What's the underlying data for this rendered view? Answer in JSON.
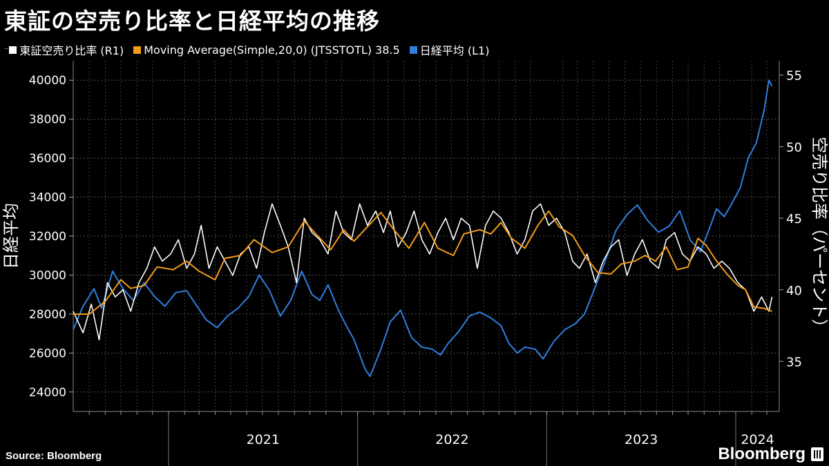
{
  "title": "東証の空売り比率と日経平均の推移",
  "legend": [
    {
      "label": "東証空売り比率 (R1)",
      "color": "#ffffff",
      "pin": "⁻"
    },
    {
      "label": "Moving Average(Simple,20,0) (JTSSTOTL) 38.5",
      "color": "#f39c1b"
    },
    {
      "label": "日経平均 (L1)",
      "color": "#2f7fe0"
    }
  ],
  "footer": {
    "source": "Source:  Bloomberg",
    "brand": "Bloomberg"
  },
  "icons": {
    "brand_logo": "bloomberg-terminal-icon"
  },
  "chart_data": {
    "type": "line",
    "x_ticks": [
      "2021",
      "2022",
      "2023",
      "2024"
    ],
    "left_axis": {
      "label": "日経平均",
      "ticks": [
        24000,
        26000,
        28000,
        30000,
        32000,
        34000,
        36000,
        38000,
        40000
      ],
      "range": [
        23000,
        41000
      ]
    },
    "right_axis": {
      "label": "空売り比率（パーセント）",
      "ticks": [
        35,
        40,
        45,
        50,
        55
      ],
      "range": [
        31.5,
        56
      ]
    },
    "series": [
      {
        "name": "東証空売り比率 (R1)",
        "axis": "right",
        "color": "#ffffff",
        "points": [
          [
            "2020-07-01",
            38.5
          ],
          [
            "2020-07-20",
            37.0
          ],
          [
            "2020-08-05",
            39.0
          ],
          [
            "2020-08-20",
            36.5
          ],
          [
            "2020-09-05",
            40.5
          ],
          [
            "2020-09-20",
            39.5
          ],
          [
            "2020-10-05",
            40.0
          ],
          [
            "2020-10-20",
            38.5
          ],
          [
            "2020-11-05",
            40.5
          ],
          [
            "2020-11-20",
            41.5
          ],
          [
            "2020-12-05",
            43.0
          ],
          [
            "2020-12-20",
            42.0
          ],
          [
            "2021-01-05",
            42.5
          ],
          [
            "2021-01-20",
            43.5
          ],
          [
            "2021-02-05",
            41.5
          ],
          [
            "2021-02-20",
            42.5
          ],
          [
            "2021-03-05",
            44.5
          ],
          [
            "2021-03-20",
            41.5
          ],
          [
            "2021-04-05",
            43.0
          ],
          [
            "2021-04-20",
            42.0
          ],
          [
            "2021-05-05",
            41.0
          ],
          [
            "2021-05-20",
            42.5
          ],
          [
            "2021-06-05",
            43.0
          ],
          [
            "2021-06-20",
            41.5
          ],
          [
            "2021-07-05",
            44.0
          ],
          [
            "2021-07-20",
            46.0
          ],
          [
            "2021-08-05",
            44.5
          ],
          [
            "2021-08-20",
            43.0
          ],
          [
            "2021-09-05",
            40.5
          ],
          [
            "2021-09-20",
            45.0
          ],
          [
            "2021-10-05",
            44.0
          ],
          [
            "2021-10-20",
            43.5
          ],
          [
            "2021-11-05",
            42.5
          ],
          [
            "2021-11-20",
            45.5
          ],
          [
            "2021-12-05",
            44.0
          ],
          [
            "2021-12-20",
            43.5
          ],
          [
            "2022-01-05",
            46.0
          ],
          [
            "2022-01-20",
            44.5
          ],
          [
            "2022-02-05",
            45.5
          ],
          [
            "2022-02-20",
            44.0
          ],
          [
            "2022-03-05",
            45.5
          ],
          [
            "2022-03-20",
            43.0
          ],
          [
            "2022-04-05",
            44.0
          ],
          [
            "2022-04-20",
            45.5
          ],
          [
            "2022-05-05",
            43.5
          ],
          [
            "2022-05-20",
            42.5
          ],
          [
            "2022-06-05",
            44.0
          ],
          [
            "2022-06-20",
            45.0
          ],
          [
            "2022-07-05",
            43.5
          ],
          [
            "2022-07-20",
            45.0
          ],
          [
            "2022-08-05",
            44.5
          ],
          [
            "2022-08-20",
            41.5
          ],
          [
            "2022-09-05",
            44.5
          ],
          [
            "2022-09-20",
            45.5
          ],
          [
            "2022-10-05",
            45.0
          ],
          [
            "2022-10-20",
            44.0
          ],
          [
            "2022-11-05",
            42.5
          ],
          [
            "2022-11-20",
            43.5
          ],
          [
            "2022-12-05",
            45.5
          ],
          [
            "2022-12-20",
            46.0
          ],
          [
            "2023-01-05",
            44.5
          ],
          [
            "2023-01-20",
            45.0
          ],
          [
            "2023-02-05",
            44.0
          ],
          [
            "2023-02-20",
            42.0
          ],
          [
            "2023-03-05",
            41.5
          ],
          [
            "2023-03-20",
            42.5
          ],
          [
            "2023-04-05",
            40.5
          ],
          [
            "2023-04-20",
            42.0
          ],
          [
            "2023-05-05",
            43.0
          ],
          [
            "2023-05-20",
            43.5
          ],
          [
            "2023-06-05",
            41.0
          ],
          [
            "2023-06-20",
            42.5
          ],
          [
            "2023-07-05",
            43.5
          ],
          [
            "2023-07-20",
            42.0
          ],
          [
            "2023-08-05",
            41.5
          ],
          [
            "2023-08-20",
            43.5
          ],
          [
            "2023-09-05",
            44.0
          ],
          [
            "2023-09-20",
            42.5
          ],
          [
            "2023-10-05",
            42.0
          ],
          [
            "2023-10-20",
            43.0
          ],
          [
            "2023-11-05",
            42.5
          ],
          [
            "2023-11-20",
            41.5
          ],
          [
            "2023-12-05",
            42.0
          ],
          [
            "2023-12-20",
            41.5
          ],
          [
            "2024-01-05",
            40.5
          ],
          [
            "2024-01-20",
            40.0
          ],
          [
            "2024-02-05",
            38.5
          ],
          [
            "2024-02-20",
            39.5
          ],
          [
            "2024-03-05",
            38.5
          ],
          [
            "2024-03-11",
            39.5
          ]
        ]
      },
      {
        "name": "Moving Average(Simple,20,0) (JTSSTOTL) 38.5",
        "axis": "right",
        "color": "#f39c1b",
        "points": [
          [
            "2020-07-01",
            38.3
          ],
          [
            "2020-08-01",
            38.3
          ],
          [
            "2020-09-01",
            39.2
          ],
          [
            "2020-10-01",
            40.7
          ],
          [
            "2020-10-20",
            40.1
          ],
          [
            "2020-11-15",
            40.3
          ],
          [
            "2020-12-10",
            41.6
          ],
          [
            "2021-01-10",
            41.4
          ],
          [
            "2021-02-05",
            42.0
          ],
          [
            "2021-03-01",
            41.3
          ],
          [
            "2021-04-01",
            40.7
          ],
          [
            "2021-04-20",
            42.2
          ],
          [
            "2021-05-20",
            42.4
          ],
          [
            "2021-06-15",
            43.5
          ],
          [
            "2021-07-20",
            42.6
          ],
          [
            "2021-08-20",
            43.0
          ],
          [
            "2021-09-20",
            44.8
          ],
          [
            "2021-10-15",
            43.8
          ],
          [
            "2021-11-10",
            42.8
          ],
          [
            "2021-12-05",
            44.2
          ],
          [
            "2021-12-25",
            43.4
          ],
          [
            "2022-01-25",
            44.6
          ],
          [
            "2022-02-15",
            45.4
          ],
          [
            "2022-03-10",
            44.3
          ],
          [
            "2022-04-10",
            42.9
          ],
          [
            "2022-05-10",
            44.7
          ],
          [
            "2022-06-05",
            42.9
          ],
          [
            "2022-07-05",
            42.4
          ],
          [
            "2022-07-25",
            43.9
          ],
          [
            "2022-08-25",
            44.2
          ],
          [
            "2022-09-15",
            43.9
          ],
          [
            "2022-10-05",
            44.7
          ],
          [
            "2022-10-25",
            43.6
          ],
          [
            "2022-11-20",
            42.9
          ],
          [
            "2022-12-15",
            44.5
          ],
          [
            "2023-01-05",
            45.5
          ],
          [
            "2023-01-25",
            44.4
          ],
          [
            "2023-02-20",
            43.8
          ],
          [
            "2023-03-15",
            42.4
          ],
          [
            "2023-04-10",
            41.2
          ],
          [
            "2023-05-05",
            41.1
          ],
          [
            "2023-05-25",
            41.8
          ],
          [
            "2023-06-20",
            42.0
          ],
          [
            "2023-07-10",
            42.4
          ],
          [
            "2023-07-30",
            42.0
          ],
          [
            "2023-08-20",
            43.0
          ],
          [
            "2023-09-10",
            41.4
          ],
          [
            "2023-10-01",
            41.6
          ],
          [
            "2023-10-20",
            43.6
          ],
          [
            "2023-11-05",
            43.1
          ],
          [
            "2023-11-25",
            42.0
          ],
          [
            "2023-12-15",
            41.1
          ],
          [
            "2024-01-05",
            40.3
          ],
          [
            "2024-01-20",
            40.0
          ],
          [
            "2024-02-05",
            38.8
          ],
          [
            "2024-02-25",
            38.7
          ],
          [
            "2024-03-11",
            38.5
          ]
        ]
      },
      {
        "name": "日経平均 (L1)",
        "axis": "left",
        "color": "#2f7fe0",
        "points": [
          [
            "2020-07-01",
            27200
          ],
          [
            "2020-07-20",
            28400
          ],
          [
            "2020-08-10",
            29300
          ],
          [
            "2020-08-25",
            28300
          ],
          [
            "2020-09-15",
            30200
          ],
          [
            "2020-10-05",
            29300
          ],
          [
            "2020-10-25",
            28700
          ],
          [
            "2020-11-15",
            29600
          ],
          [
            "2020-12-05",
            28900
          ],
          [
            "2020-12-25",
            28400
          ],
          [
            "2021-01-15",
            29100
          ],
          [
            "2021-02-05",
            29200
          ],
          [
            "2021-02-25",
            28400
          ],
          [
            "2021-03-15",
            27700
          ],
          [
            "2021-04-05",
            27300
          ],
          [
            "2021-04-25",
            27900
          ],
          [
            "2021-05-15",
            28300
          ],
          [
            "2021-06-05",
            28900
          ],
          [
            "2021-06-25",
            30000
          ],
          [
            "2021-07-15",
            29200
          ],
          [
            "2021-08-05",
            27900
          ],
          [
            "2021-08-25",
            28700
          ],
          [
            "2021-09-15",
            30200
          ],
          [
            "2021-10-05",
            29000
          ],
          [
            "2021-10-20",
            28700
          ],
          [
            "2021-11-05",
            29500
          ],
          [
            "2021-11-25",
            28200
          ],
          [
            "2021-12-10",
            27400
          ],
          [
            "2021-12-25",
            26700
          ],
          [
            "2022-01-15",
            25200
          ],
          [
            "2022-01-25",
            24800
          ],
          [
            "2022-02-15",
            26200
          ],
          [
            "2022-03-05",
            27600
          ],
          [
            "2022-03-25",
            28200
          ],
          [
            "2022-04-15",
            26800
          ],
          [
            "2022-05-05",
            26300
          ],
          [
            "2022-05-25",
            26200
          ],
          [
            "2022-06-10",
            25900
          ],
          [
            "2022-06-25",
            26500
          ],
          [
            "2022-07-15",
            27100
          ],
          [
            "2022-08-05",
            27900
          ],
          [
            "2022-08-25",
            28100
          ],
          [
            "2022-09-15",
            27800
          ],
          [
            "2022-10-05",
            27400
          ],
          [
            "2022-10-20",
            26500
          ],
          [
            "2022-11-05",
            26000
          ],
          [
            "2022-11-20",
            26300
          ],
          [
            "2022-12-10",
            26200
          ],
          [
            "2022-12-25",
            25700
          ],
          [
            "2023-01-15",
            26600
          ],
          [
            "2023-02-05",
            27200
          ],
          [
            "2023-02-25",
            27500
          ],
          [
            "2023-03-15",
            28000
          ],
          [
            "2023-04-05",
            29400
          ],
          [
            "2023-04-25",
            30800
          ],
          [
            "2023-05-15",
            32300
          ],
          [
            "2023-06-05",
            33100
          ],
          [
            "2023-06-25",
            33600
          ],
          [
            "2023-07-15",
            32800
          ],
          [
            "2023-08-05",
            32200
          ],
          [
            "2023-08-25",
            32500
          ],
          [
            "2023-09-15",
            33300
          ],
          [
            "2023-10-05",
            31800
          ],
          [
            "2023-10-25",
            31200
          ],
          [
            "2023-11-10",
            32300
          ],
          [
            "2023-11-25",
            33400
          ],
          [
            "2023-12-10",
            33000
          ],
          [
            "2023-12-25",
            33700
          ],
          [
            "2024-01-10",
            34500
          ],
          [
            "2024-01-25",
            36000
          ],
          [
            "2024-02-10",
            36800
          ],
          [
            "2024-02-25",
            38500
          ],
          [
            "2024-03-05",
            40000
          ],
          [
            "2024-03-11",
            39700
          ]
        ]
      }
    ]
  }
}
